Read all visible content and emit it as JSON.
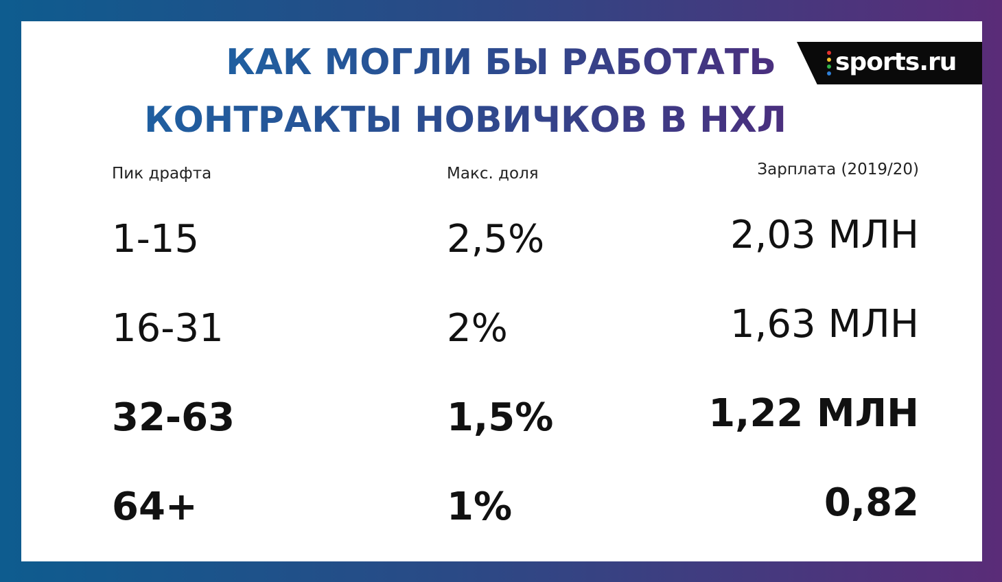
{
  "title_line1": "КАК МОГЛИ БЫ РАБОТАТЬ",
  "title_line2": "КОНТРАКТЫ НОВИЧКОВ В НХЛ",
  "logo": {
    "text": "sports.ru",
    "dot_colors": [
      "#e5322d",
      "#f2c12e",
      "#2fb34a",
      "#2f7fd6"
    ]
  },
  "colors": {
    "background_left": "#0e5c8f",
    "background_right": "#5a2c78",
    "title_gradient": [
      "#1f5fa0",
      "#4a2f7e"
    ],
    "text": "#111111"
  },
  "chart_data": {
    "type": "table",
    "columns": [
      "Пик драфта",
      "Макс. доля",
      "Зарплата (2019/20)"
    ],
    "rows": [
      {
        "pick": "1-15",
        "share": "2,5%",
        "salary": "2,03 МЛН",
        "bold": false
      },
      {
        "pick": "16-31",
        "share": "2%",
        "salary": "1,63 МЛН",
        "bold": false
      },
      {
        "pick": "32-63",
        "share": "1,5%",
        "salary": "1,22 МЛН",
        "bold": true
      },
      {
        "pick": "64+",
        "share": "1%",
        "salary": "0,82",
        "bold": true
      }
    ]
  }
}
